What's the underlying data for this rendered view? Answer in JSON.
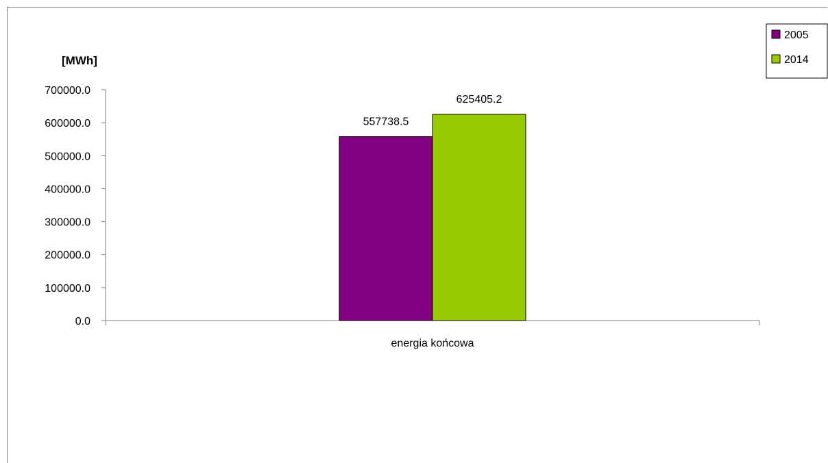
{
  "chart_data": {
    "type": "bar",
    "title": "",
    "ylabel": "[MWh]",
    "xlabel": "",
    "categories": [
      "energia końcowa"
    ],
    "series": [
      {
        "name": "2005",
        "values": [
          557738.5
        ],
        "color": "#800080"
      },
      {
        "name": "2014",
        "values": [
          625405.2
        ],
        "color": "#99cc00"
      }
    ],
    "data_labels": [
      [
        "557738.5"
      ],
      [
        "625405.2"
      ]
    ],
    "ylim": [
      0,
      700000
    ],
    "y_ticks": [
      0,
      100000,
      200000,
      300000,
      400000,
      500000,
      600000,
      700000
    ],
    "y_tick_labels": [
      "0.0",
      "100000.0",
      "200000.0",
      "300000.0",
      "400000.0",
      "500000.0",
      "600000.0",
      "700000.0"
    ],
    "grid": false,
    "legend_position": "top-right"
  }
}
